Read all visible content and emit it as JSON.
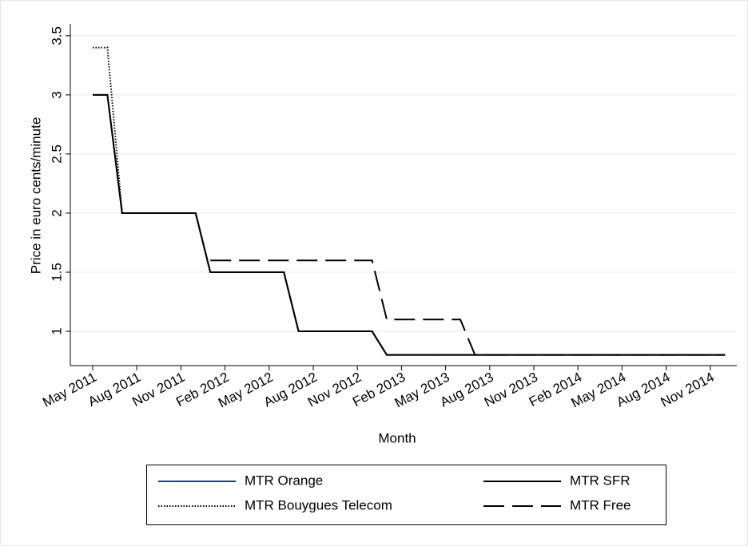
{
  "chart_data": {
    "type": "line",
    "ylabel": "Price in euro cents/minute",
    "xlabel": "Month",
    "categories": [
      "May 2011",
      null,
      null,
      "Aug 2011",
      null,
      null,
      "Nov 2011",
      null,
      null,
      "Feb 2012",
      null,
      null,
      "May 2012",
      null,
      null,
      "Aug 2012",
      null,
      null,
      "Nov 2012",
      null,
      null,
      "Feb 2013",
      null,
      null,
      "May 2013",
      null,
      null,
      "Aug 2013",
      null,
      null,
      "Nov 2013",
      null,
      null,
      "Feb 2014",
      null,
      null,
      "May 2014",
      null,
      null,
      "Aug 2014",
      null,
      null,
      "Nov 2014",
      null
    ],
    "series": [
      {
        "name": "MTR Orange",
        "color": "#1a476f",
        "dash": "solid",
        "values": [
          3,
          3,
          2,
          2,
          2,
          2,
          2,
          2,
          1.5,
          1.5,
          1.5,
          1.5,
          1.5,
          1.5,
          1,
          1,
          1,
          1,
          1,
          1,
          0.8,
          0.8,
          0.8,
          0.8,
          0.8,
          0.8,
          0.8,
          0.8,
          0.8,
          0.8,
          0.8,
          0.8,
          0.8,
          0.8,
          0.8,
          0.8,
          0.8,
          0.8,
          0.8,
          0.8,
          0.8,
          0.8,
          0.8,
          0.8
        ]
      },
      {
        "name": "MTR SFR",
        "color": "#000000",
        "dash": "solid",
        "values": [
          3,
          3,
          2,
          2,
          2,
          2,
          2,
          2,
          1.5,
          1.5,
          1.5,
          1.5,
          1.5,
          1.5,
          1,
          1,
          1,
          1,
          1,
          1,
          0.8,
          0.8,
          0.8,
          0.8,
          0.8,
          0.8,
          0.8,
          0.8,
          0.8,
          0.8,
          0.8,
          0.8,
          0.8,
          0.8,
          0.8,
          0.8,
          0.8,
          0.8,
          0.8,
          0.8,
          0.8,
          0.8,
          0.8,
          0.8
        ]
      },
      {
        "name": "MTR Bouygues Telecom",
        "color": "#000000",
        "dash": "dotted",
        "values": [
          3.4,
          3.4,
          2,
          2,
          2,
          2,
          2,
          2,
          1.5,
          1.5,
          1.5,
          1.5,
          1.5,
          1.5,
          1,
          1,
          1,
          1,
          1,
          1,
          0.8,
          0.8,
          0.8,
          0.8,
          0.8,
          0.8,
          0.8,
          0.8,
          0.8,
          0.8,
          0.8,
          0.8,
          0.8,
          0.8,
          0.8,
          0.8,
          0.8,
          0.8,
          0.8,
          0.8,
          0.8,
          0.8,
          0.8,
          0.8
        ]
      },
      {
        "name": "MTR Free",
        "color": "#000000",
        "dash": "dashed",
        "values": [
          null,
          null,
          null,
          null,
          null,
          null,
          null,
          null,
          1.6,
          1.6,
          1.6,
          1.6,
          1.6,
          1.6,
          1.6,
          1.6,
          1.6,
          1.6,
          1.6,
          1.6,
          1.1,
          1.1,
          1.1,
          1.1,
          1.1,
          1.1,
          0.8,
          0.8,
          0.8,
          0.8,
          0.8,
          0.8,
          0.8,
          0.8,
          0.8,
          0.8,
          0.8,
          0.8,
          0.8,
          0.8,
          0.8,
          0.8,
          0.8,
          0.8
        ]
      }
    ],
    "ylim": [
      0.71,
      3.6
    ],
    "yticks": [
      1,
      1.5,
      2,
      2.5,
      3,
      3.5
    ],
    "grid": true,
    "legend": "bottom"
  }
}
